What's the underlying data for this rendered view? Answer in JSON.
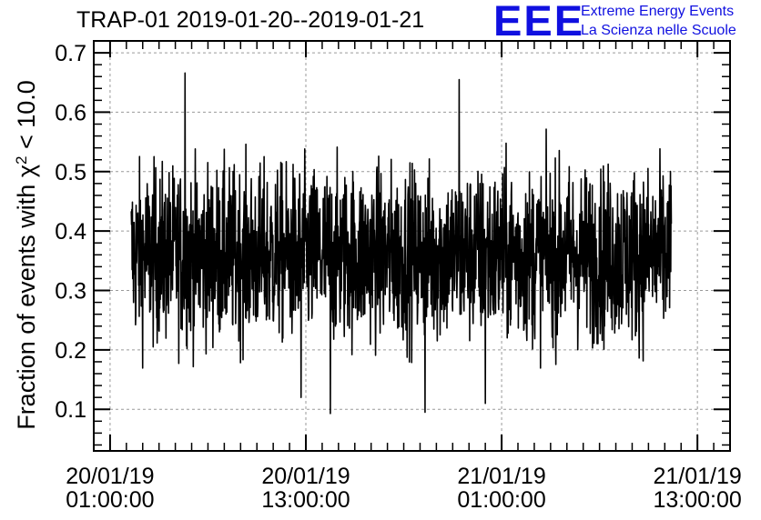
{
  "title": "TRAP-01 2019-01-20--2019-01-21",
  "logo": {
    "mark": "EEE",
    "line1": "Extreme Energy Events",
    "line2": "La Scienza nelle Scuole",
    "color": "#1010e0"
  },
  "chart_data": {
    "type": "line",
    "title": "TRAP-01 2019-01-20--2019-01-21",
    "xlabel": "",
    "ylabel": "Fraction of events with χ² < 10.0",
    "ylabel_parts": {
      "pre": "Fraction of events with χ",
      "sup": "2",
      "post": " < 10.0"
    },
    "x_unit": "hours since 20/01/19 00:00:00",
    "xlim": [
      0.0,
      39.0
    ],
    "ylim": [
      0.03,
      0.72
    ],
    "x_ticks": [
      {
        "value": 1.0,
        "line1": "20/01/19",
        "line2": "01:00:00"
      },
      {
        "value": 13.0,
        "line1": "20/01/19",
        "line2": "13:00:00"
      },
      {
        "value": 25.0,
        "line1": "21/01/19",
        "line2": "01:00:00"
      },
      {
        "value": 37.0,
        "line1": "21/01/19",
        "line2": "13:00:00"
      }
    ],
    "y_ticks": [
      {
        "value": 0.1,
        "label": "0.1"
      },
      {
        "value": 0.2,
        "label": "0.2"
      },
      {
        "value": 0.3,
        "label": "0.3"
      },
      {
        "value": 0.4,
        "label": "0.4"
      },
      {
        "value": 0.5,
        "label": "0.5"
      },
      {
        "value": 0.6,
        "label": "0.6"
      },
      {
        "value": 0.7,
        "label": "0.7"
      }
    ],
    "grid": true,
    "series": [
      {
        "color": "#000000",
        "x_start": 2.3,
        "x_end": 35.4,
        "mean": 0.36,
        "min": 0.09,
        "max": 0.67,
        "note_points": [
          {
            "x": 5.6,
            "y": 0.666
          },
          {
            "x": 12.7,
            "y": 0.12
          },
          {
            "x": 14.5,
            "y": 0.093
          },
          {
            "x": 20.3,
            "y": 0.095
          },
          {
            "x": 22.4,
            "y": 0.655
          },
          {
            "x": 24.0,
            "y": 0.11
          }
        ]
      }
    ]
  }
}
